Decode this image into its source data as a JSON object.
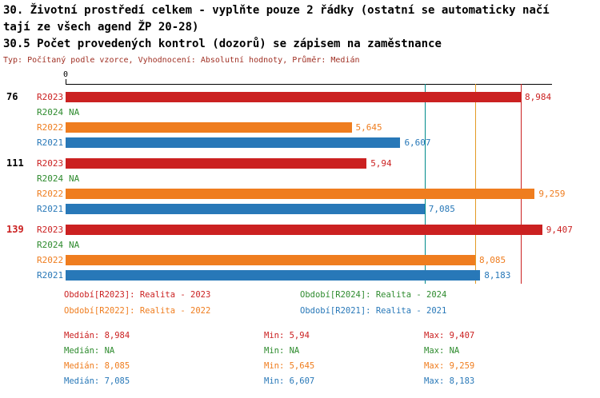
{
  "chart_data": {
    "type": "bar",
    "orientation": "horizontal",
    "title_lines": [
      "30. Životní prostředí celkem - vyplňte pouze 2 řádky (ostatní se automaticky načí",
      "tají ze všech agend ŽP 20-28)"
    ],
    "subtitle": "30.5 Počet provedených kontrol (dozorů) se zápisem na zaměstnance",
    "meta_line": "Typ: Počítaný podle vzorce, Vyhodnocení: Absolutní hodnoty, Průměr: Medián",
    "axis": {
      "origin_label": "0",
      "xlim": [
        0,
        9.6
      ],
      "grid": false
    },
    "series": [
      {
        "id": "R2023",
        "name": "Realita - 2023",
        "color": "#cb2121"
      },
      {
        "id": "R2024",
        "name": "Realita - 2024",
        "color": "#2e8b2e"
      },
      {
        "id": "R2022",
        "name": "Realita - 2022",
        "color": "#ef7d1f"
      },
      {
        "id": "R2021",
        "name": "Realita - 2021",
        "color": "#2878b8"
      }
    ],
    "groups": [
      {
        "label": "76",
        "label_color": "#000000",
        "bars": [
          {
            "series": "R2023",
            "value": 8.984,
            "display": "8,984"
          },
          {
            "series": "R2024",
            "value": null,
            "display": "NA"
          },
          {
            "series": "R2022",
            "value": 5.645,
            "display": "5,645"
          },
          {
            "series": "R2021",
            "value": 6.607,
            "display": "6,607"
          }
        ]
      },
      {
        "label": "111",
        "label_color": "#000000",
        "bars": [
          {
            "series": "R2023",
            "value": 5.94,
            "display": "5,94"
          },
          {
            "series": "R2024",
            "value": null,
            "display": "NA"
          },
          {
            "series": "R2022",
            "value": 9.259,
            "display": "9,259"
          },
          {
            "series": "R2021",
            "value": 7.085,
            "display": "7,085"
          }
        ]
      },
      {
        "label": "139",
        "label_color": "#cb2121",
        "bars": [
          {
            "series": "R2023",
            "value": 9.407,
            "display": "9,407"
          },
          {
            "series": "R2024",
            "value": null,
            "display": "NA"
          },
          {
            "series": "R2022",
            "value": 8.085,
            "display": "8,085"
          },
          {
            "series": "R2021",
            "value": 8.183,
            "display": "8,183"
          }
        ]
      }
    ],
    "reference_lines": [
      {
        "value": 7.085,
        "color": "#008b8b"
      },
      {
        "value": 8.085,
        "color": "#e39b25"
      },
      {
        "value": 8.984,
        "color": "#cb2121"
      }
    ],
    "legend": [
      {
        "text": "Období[R2023]: Realita - 2023",
        "color": "#cb2121",
        "column": 1,
        "row": 1
      },
      {
        "text": "Období[R2024]: Realita - 2024",
        "color": "#2e8b2e",
        "column": 2,
        "row": 1
      },
      {
        "text": "Období[R2022]: Realita - 2022",
        "color": "#ef7d1f",
        "column": 1,
        "row": 2
      },
      {
        "text": "Období[R2021]: Realita - 2021",
        "color": "#2878b8",
        "column": 2,
        "row": 2
      }
    ],
    "stats": [
      {
        "color": "#cb2121",
        "median": "Medián: 8,984",
        "min": "Min: 5,94",
        "max": "Max: 9,407"
      },
      {
        "color": "#2e8b2e",
        "median": "Medián: NA",
        "min": "Min: NA",
        "max": "Max: NA"
      },
      {
        "color": "#ef7d1f",
        "median": "Medián: 8,085",
        "min": "Min: 5,645",
        "max": "Max: 9,259"
      },
      {
        "color": "#2878b8",
        "median": "Medián: 7,085",
        "min": "Min: 6,607",
        "max": "Max: 8,183"
      }
    ]
  }
}
